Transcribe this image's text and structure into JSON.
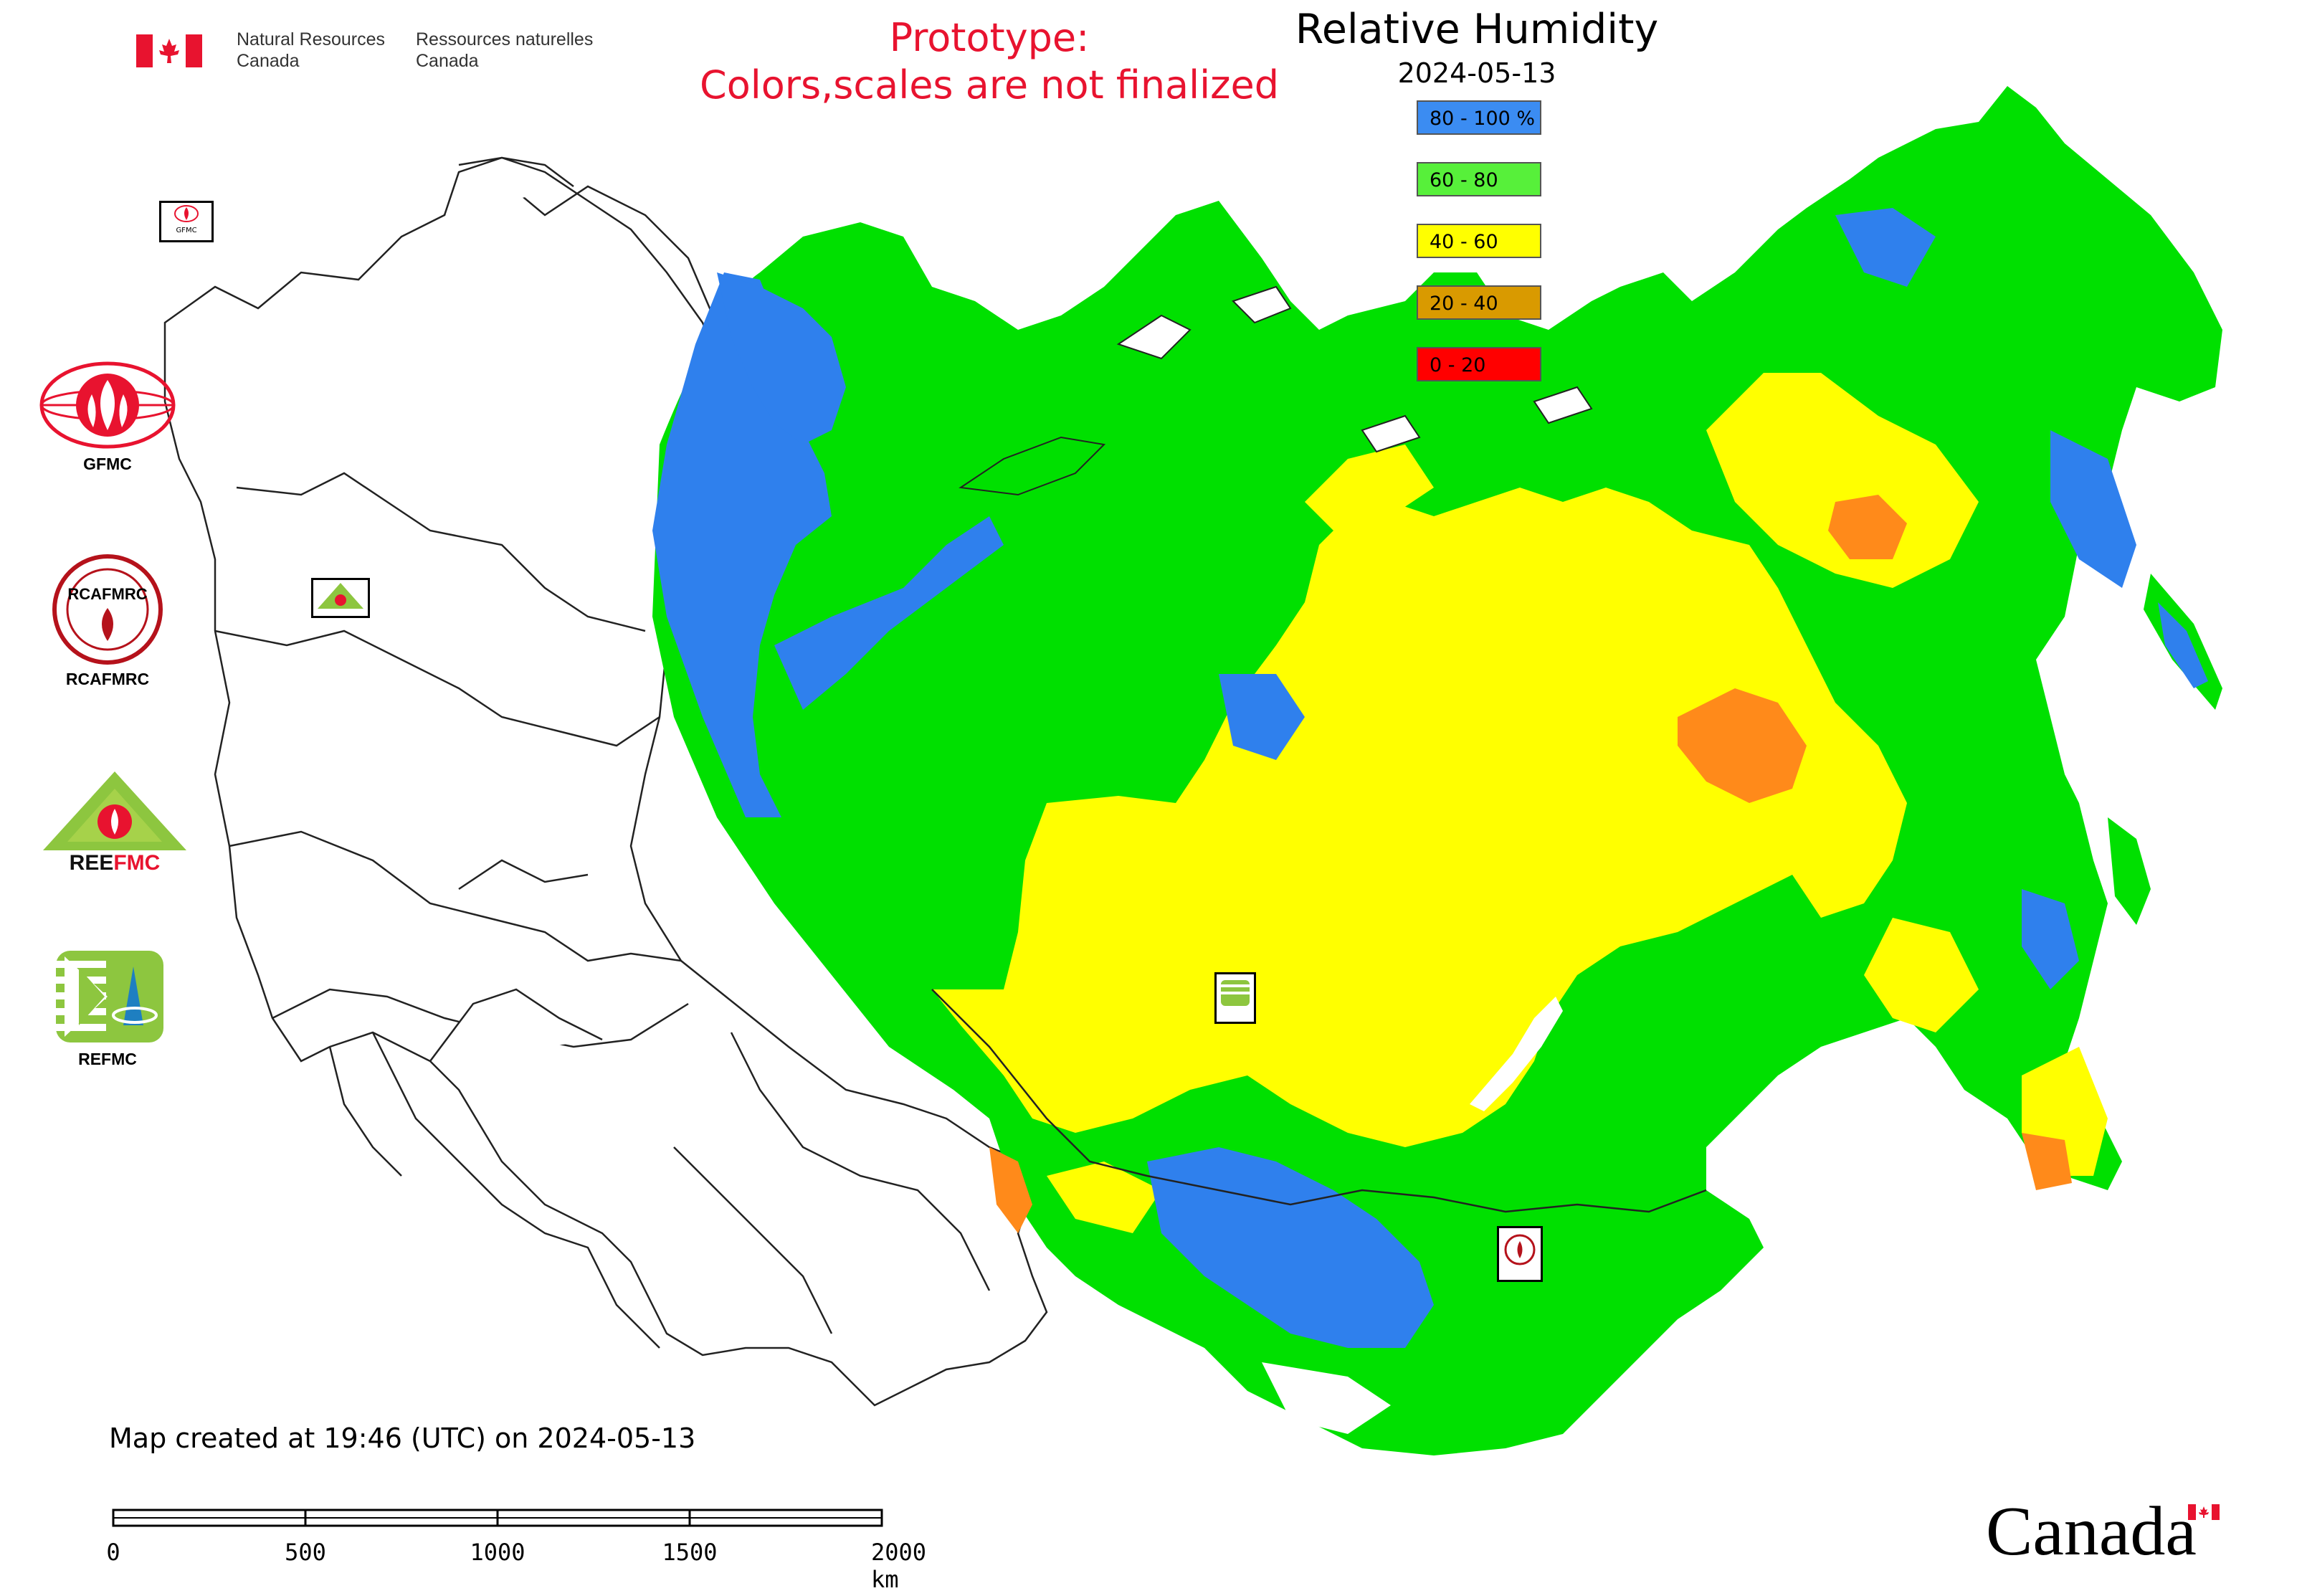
{
  "header": {
    "department_en": [
      "Natural Resources",
      "Canada"
    ],
    "department_fr": [
      "Ressources naturelles",
      "Canada"
    ],
    "prototype_notice": [
      "Prototype:",
      "Colors,scales are not finalized"
    ],
    "flag_icon": "canada-flag-icon"
  },
  "map": {
    "title": "Relative Humidity",
    "date": "2024-05-13",
    "legend": [
      {
        "label": "80 - 100 %",
        "color": "#3b8cf2"
      },
      {
        "label": "60 - 80",
        "color": "#57f03a"
      },
      {
        "label": "40 - 60",
        "color": "#ffff00"
      },
      {
        "label": "20 - 40",
        "color": "#d99a00"
      },
      {
        "label": "0 - 20",
        "color": "#ff0000"
      }
    ],
    "colors": {
      "wet": "#2f80ed",
      "moist": "#00e000",
      "mid": "#ffff00",
      "dry": "#ff8a1a",
      "very_dry": "#ff0000",
      "boundary": "#222222"
    },
    "center_markers": [
      "GFMC",
      "REEFMC",
      "REFMC",
      "RCAFMRC"
    ]
  },
  "partners": [
    {
      "label": "GFMC",
      "icon": "gfmc-logo-icon"
    },
    {
      "label": "RCAFMRC",
      "icon": "rcafmrc-logo-icon"
    },
    {
      "label": "REEFMC",
      "icon": "reefmc-logo-icon"
    },
    {
      "label": "REFMC",
      "icon": "refmc-logo-icon"
    }
  ],
  "footer": {
    "created": "Map created at 19:46 (UTC) on 2024-05-13",
    "scale_ticks": [
      "0",
      "500",
      "1000",
      "1500",
      "2000 km"
    ],
    "wordmark": "Canada"
  }
}
